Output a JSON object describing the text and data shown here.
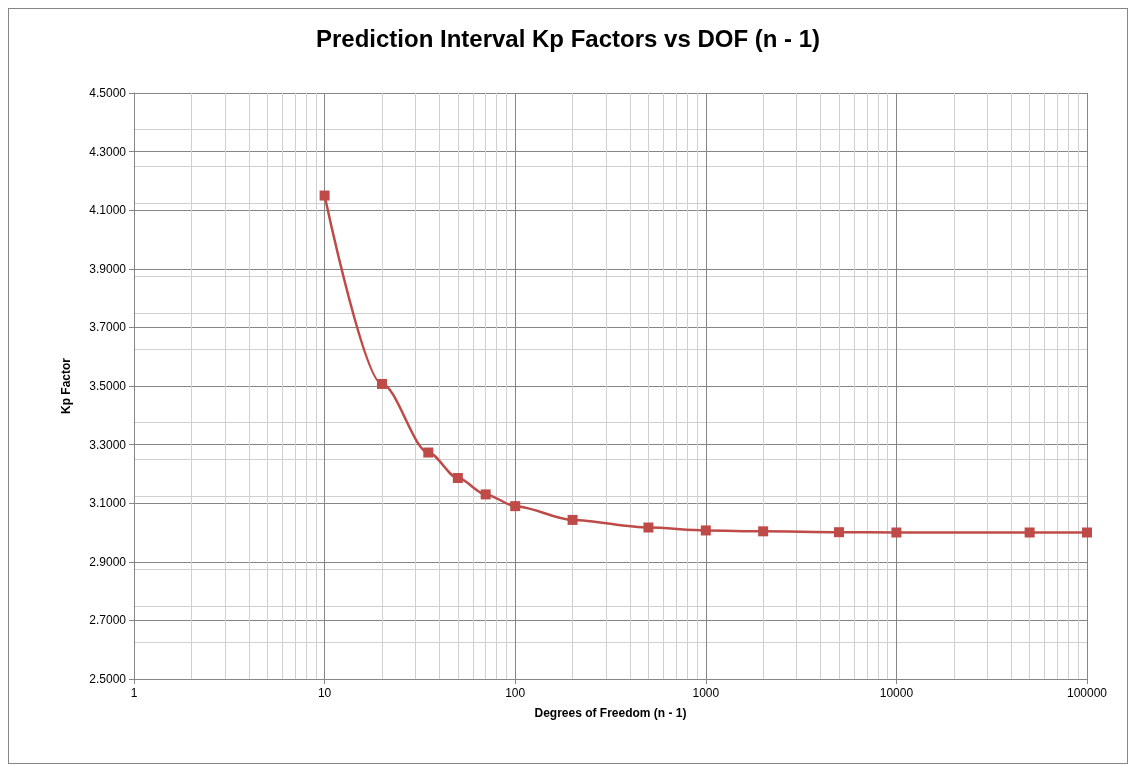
{
  "chart_data": {
    "type": "line",
    "title": "Prediction Interval Kp Factors vs DOF (n - 1)",
    "xlabel": "Degrees of Freedom (n - 1)",
    "ylabel": "Kp Factor",
    "x": [
      10,
      20,
      35,
      50,
      70,
      100,
      200,
      500,
      1000,
      2000,
      5000,
      10000,
      50000,
      100000
    ],
    "series": [
      {
        "color": "#be4b48",
        "values": [
          4.15,
          3.507,
          3.273,
          3.186,
          3.13,
          3.09,
          3.043,
          3.017,
          3.007,
          3.004,
          3.001,
          3.0,
          3.0,
          3.0
        ]
      }
    ],
    "log": "x",
    "xlim": [
      1,
      100000
    ],
    "xticks": [
      1,
      10,
      100,
      1000,
      10000,
      100000
    ],
    "ylim": [
      2.5,
      4.5
    ],
    "yticks": [
      {
        "value": 2.5,
        "label": "2.5000"
      },
      {
        "value": 2.7,
        "label": "2.7000"
      },
      {
        "value": 2.9,
        "label": "2.9000"
      },
      {
        "value": 3.1,
        "label": "3.1000"
      },
      {
        "value": 3.3,
        "label": "3.3000"
      },
      {
        "value": 3.5,
        "label": "3.5000"
      },
      {
        "value": 3.7,
        "label": "3.7000"
      },
      {
        "value": 3.9,
        "label": "3.9000"
      },
      {
        "value": 4.1,
        "label": "4.1000"
      },
      {
        "value": 4.3,
        "label": "4.3000"
      },
      {
        "value": 4.5,
        "label": "4.5000"
      }
    ],
    "grid": true,
    "marker": "square",
    "line_style": "solid"
  }
}
